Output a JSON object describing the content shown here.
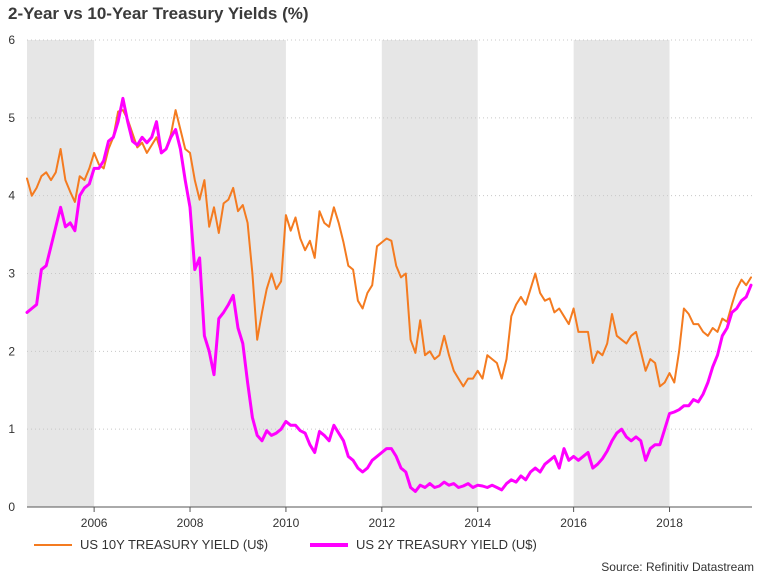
{
  "chart_data": {
    "type": "line",
    "title": "2-Year vs 10-Year Treasury Yields (%)",
    "xlabel": "",
    "ylabel": "",
    "xlim": [
      2004.6,
      2019.72
    ],
    "ylim": [
      0,
      6
    ],
    "y_ticks": [
      "0",
      "1",
      "2",
      "3",
      "4",
      "5",
      "6"
    ],
    "x_ticks": [
      "2006",
      "2008",
      "2010",
      "2012",
      "2014",
      "2016",
      "2018"
    ],
    "recession_shading": [
      [
        2004.6,
        2006.0
      ],
      [
        2008.0,
        2010.0
      ],
      [
        2012.0,
        2014.0
      ],
      [
        2016.0,
        2018.0
      ]
    ],
    "series": [
      {
        "name": "US 10Y TREASURY YIELD (U$)",
        "color": "#F47B20",
        "points": [
          [
            2004.6,
            4.22
          ],
          [
            2004.7,
            4.0
          ],
          [
            2004.8,
            4.1
          ],
          [
            2004.9,
            4.25
          ],
          [
            2005.0,
            4.3
          ],
          [
            2005.1,
            4.2
          ],
          [
            2005.2,
            4.3
          ],
          [
            2005.3,
            4.6
          ],
          [
            2005.4,
            4.2
          ],
          [
            2005.5,
            4.05
          ],
          [
            2005.6,
            3.92
          ],
          [
            2005.7,
            4.25
          ],
          [
            2005.8,
            4.2
          ],
          [
            2005.9,
            4.35
          ],
          [
            2006.0,
            4.55
          ],
          [
            2006.1,
            4.4
          ],
          [
            2006.2,
            4.35
          ],
          [
            2006.3,
            4.6
          ],
          [
            2006.4,
            4.75
          ],
          [
            2006.5,
            5.08
          ],
          [
            2006.6,
            5.1
          ],
          [
            2006.7,
            4.98
          ],
          [
            2006.8,
            4.8
          ],
          [
            2006.9,
            4.62
          ],
          [
            2007.0,
            4.68
          ],
          [
            2007.1,
            4.55
          ],
          [
            2007.2,
            4.65
          ],
          [
            2007.3,
            4.75
          ],
          [
            2007.4,
            4.55
          ],
          [
            2007.5,
            4.6
          ],
          [
            2007.6,
            4.78
          ],
          [
            2007.7,
            5.1
          ],
          [
            2007.8,
            4.85
          ],
          [
            2007.9,
            4.6
          ],
          [
            2008.0,
            4.55
          ],
          [
            2008.1,
            4.2
          ],
          [
            2008.2,
            3.95
          ],
          [
            2008.3,
            4.2
          ],
          [
            2008.4,
            3.6
          ],
          [
            2008.5,
            3.85
          ],
          [
            2008.6,
            3.52
          ],
          [
            2008.7,
            3.9
          ],
          [
            2008.8,
            3.95
          ],
          [
            2008.9,
            4.1
          ],
          [
            2009.0,
            3.8
          ],
          [
            2009.1,
            3.88
          ],
          [
            2009.2,
            3.65
          ],
          [
            2009.3,
            3.0
          ],
          [
            2009.4,
            2.15
          ],
          [
            2009.5,
            2.5
          ],
          [
            2009.6,
            2.8
          ],
          [
            2009.7,
            3.0
          ],
          [
            2009.8,
            2.8
          ],
          [
            2009.9,
            2.9
          ],
          [
            2010.0,
            3.75
          ],
          [
            2010.1,
            3.55
          ],
          [
            2010.2,
            3.72
          ],
          [
            2010.3,
            3.45
          ],
          [
            2010.4,
            3.3
          ],
          [
            2010.5,
            3.42
          ],
          [
            2010.6,
            3.2
          ],
          [
            2010.7,
            3.8
          ],
          [
            2010.8,
            3.65
          ],
          [
            2010.9,
            3.6
          ],
          [
            2011.0,
            3.85
          ],
          [
            2011.1,
            3.65
          ],
          [
            2011.2,
            3.4
          ],
          [
            2011.3,
            3.1
          ],
          [
            2011.4,
            3.05
          ],
          [
            2011.5,
            2.65
          ],
          [
            2011.6,
            2.55
          ],
          [
            2011.7,
            2.75
          ],
          [
            2011.8,
            2.85
          ],
          [
            2011.9,
            3.35
          ],
          [
            2012.0,
            3.4
          ],
          [
            2012.1,
            3.45
          ],
          [
            2012.2,
            3.42
          ],
          [
            2012.3,
            3.1
          ],
          [
            2012.4,
            2.95
          ],
          [
            2012.5,
            3.0
          ],
          [
            2012.6,
            2.15
          ],
          [
            2012.7,
            1.98
          ],
          [
            2012.8,
            2.4
          ],
          [
            2012.9,
            1.95
          ],
          [
            2013.0,
            2.0
          ],
          [
            2013.1,
            1.9
          ],
          [
            2013.2,
            1.95
          ],
          [
            2013.3,
            2.2
          ],
          [
            2013.4,
            1.95
          ],
          [
            2013.5,
            1.75
          ],
          [
            2013.6,
            1.65
          ],
          [
            2013.7,
            1.55
          ],
          [
            2013.8,
            1.65
          ],
          [
            2013.9,
            1.65
          ],
          [
            2014.0,
            1.75
          ],
          [
            2014.1,
            1.65
          ],
          [
            2014.2,
            1.95
          ],
          [
            2014.3,
            1.9
          ],
          [
            2014.4,
            1.85
          ],
          [
            2014.5,
            1.65
          ],
          [
            2014.6,
            1.9
          ],
          [
            2014.7,
            2.45
          ],
          [
            2014.8,
            2.6
          ],
          [
            2014.9,
            2.7
          ],
          [
            2015.0,
            2.6
          ],
          [
            2015.1,
            2.8
          ],
          [
            2015.2,
            3.0
          ],
          [
            2015.3,
            2.75
          ],
          [
            2015.4,
            2.65
          ],
          [
            2015.5,
            2.68
          ],
          [
            2015.6,
            2.5
          ],
          [
            2015.7,
            2.55
          ],
          [
            2015.8,
            2.45
          ],
          [
            2015.9,
            2.35
          ],
          [
            2016.0,
            2.55
          ],
          [
            2016.1,
            2.25
          ],
          [
            2016.2,
            2.25
          ],
          [
            2016.3,
            2.25
          ],
          [
            2016.4,
            1.85
          ],
          [
            2016.5,
            2.0
          ],
          [
            2016.6,
            1.95
          ],
          [
            2016.7,
            2.1
          ],
          [
            2016.8,
            2.48
          ],
          [
            2016.9,
            2.2
          ],
          [
            2017.0,
            2.15
          ],
          [
            2017.1,
            2.1
          ],
          [
            2017.2,
            2.2
          ],
          [
            2017.3,
            2.25
          ],
          [
            2017.4,
            2.0
          ],
          [
            2017.5,
            1.75
          ],
          [
            2017.6,
            1.9
          ],
          [
            2017.7,
            1.85
          ],
          [
            2017.8,
            1.55
          ],
          [
            2017.9,
            1.6
          ],
          [
            2018.0,
            1.72
          ],
          [
            2018.1,
            1.6
          ],
          [
            2018.2,
            2.0
          ],
          [
            2018.3,
            2.55
          ],
          [
            2018.4,
            2.48
          ],
          [
            2018.5,
            2.35
          ],
          [
            2018.6,
            2.35
          ],
          [
            2018.7,
            2.25
          ],
          [
            2018.8,
            2.2
          ],
          [
            2018.9,
            2.3
          ],
          [
            2019.0,
            2.25
          ],
          [
            2019.1,
            2.42
          ],
          [
            2019.2,
            2.38
          ],
          [
            2019.3,
            2.6
          ],
          [
            2019.4,
            2.8
          ],
          [
            2019.5,
            2.92
          ],
          [
            2019.6,
            2.85
          ],
          [
            2019.7,
            2.95
          ]
        ]
      },
      {
        "name": "US 2Y TREASURY YIELD (U$)",
        "color": "#FF00FF",
        "points": [
          [
            2004.6,
            2.5
          ],
          [
            2004.7,
            2.55
          ],
          [
            2004.8,
            2.6
          ],
          [
            2004.9,
            3.05
          ],
          [
            2005.0,
            3.1
          ],
          [
            2005.1,
            3.35
          ],
          [
            2005.2,
            3.6
          ],
          [
            2005.3,
            3.85
          ],
          [
            2005.4,
            3.6
          ],
          [
            2005.5,
            3.65
          ],
          [
            2005.6,
            3.55
          ],
          [
            2005.7,
            4.0
          ],
          [
            2005.8,
            4.1
          ],
          [
            2005.9,
            4.15
          ],
          [
            2006.0,
            4.35
          ],
          [
            2006.1,
            4.35
          ],
          [
            2006.2,
            4.45
          ],
          [
            2006.3,
            4.7
          ],
          [
            2006.4,
            4.75
          ],
          [
            2006.5,
            4.95
          ],
          [
            2006.6,
            5.25
          ],
          [
            2006.7,
            4.95
          ],
          [
            2006.8,
            4.7
          ],
          [
            2006.9,
            4.65
          ],
          [
            2007.0,
            4.75
          ],
          [
            2007.1,
            4.68
          ],
          [
            2007.2,
            4.75
          ],
          [
            2007.3,
            4.95
          ],
          [
            2007.4,
            4.55
          ],
          [
            2007.5,
            4.6
          ],
          [
            2007.6,
            4.75
          ],
          [
            2007.7,
            4.85
          ],
          [
            2007.8,
            4.6
          ],
          [
            2007.9,
            4.2
          ],
          [
            2008.0,
            3.85
          ],
          [
            2008.1,
            3.05
          ],
          [
            2008.2,
            3.2
          ],
          [
            2008.3,
            2.2
          ],
          [
            2008.4,
            2.0
          ],
          [
            2008.5,
            1.7
          ],
          [
            2008.6,
            2.42
          ],
          [
            2008.7,
            2.5
          ],
          [
            2008.8,
            2.6
          ],
          [
            2008.9,
            2.72
          ],
          [
            2009.0,
            2.3
          ],
          [
            2009.1,
            2.1
          ],
          [
            2009.2,
            1.6
          ],
          [
            2009.3,
            1.15
          ],
          [
            2009.4,
            0.92
          ],
          [
            2009.5,
            0.85
          ],
          [
            2009.6,
            0.98
          ],
          [
            2009.7,
            0.92
          ],
          [
            2009.8,
            0.95
          ],
          [
            2009.9,
            1.0
          ],
          [
            2010.0,
            1.1
          ],
          [
            2010.1,
            1.05
          ],
          [
            2010.2,
            1.05
          ],
          [
            2010.3,
            0.98
          ],
          [
            2010.4,
            0.95
          ],
          [
            2010.5,
            0.8
          ],
          [
            2010.6,
            0.7
          ],
          [
            2010.7,
            0.97
          ],
          [
            2010.8,
            0.92
          ],
          [
            2010.9,
            0.85
          ],
          [
            2011.0,
            1.05
          ],
          [
            2011.1,
            0.95
          ],
          [
            2011.2,
            0.85
          ],
          [
            2011.3,
            0.65
          ],
          [
            2011.4,
            0.6
          ],
          [
            2011.5,
            0.5
          ],
          [
            2011.6,
            0.45
          ],
          [
            2011.7,
            0.5
          ],
          [
            2011.8,
            0.6
          ],
          [
            2011.9,
            0.65
          ],
          [
            2012.0,
            0.7
          ],
          [
            2012.1,
            0.75
          ],
          [
            2012.2,
            0.75
          ],
          [
            2012.3,
            0.65
          ],
          [
            2012.4,
            0.5
          ],
          [
            2012.5,
            0.45
          ],
          [
            2012.6,
            0.25
          ],
          [
            2012.7,
            0.2
          ],
          [
            2012.8,
            0.28
          ],
          [
            2012.9,
            0.25
          ],
          [
            2013.0,
            0.3
          ],
          [
            2013.1,
            0.25
          ],
          [
            2013.2,
            0.27
          ],
          [
            2013.3,
            0.32
          ],
          [
            2013.4,
            0.28
          ],
          [
            2013.5,
            0.3
          ],
          [
            2013.6,
            0.25
          ],
          [
            2013.7,
            0.27
          ],
          [
            2013.8,
            0.3
          ],
          [
            2013.9,
            0.25
          ],
          [
            2014.0,
            0.28
          ],
          [
            2014.1,
            0.27
          ],
          [
            2014.2,
            0.25
          ],
          [
            2014.3,
            0.28
          ],
          [
            2014.4,
            0.25
          ],
          [
            2014.5,
            0.22
          ],
          [
            2014.6,
            0.3
          ],
          [
            2014.7,
            0.35
          ],
          [
            2014.8,
            0.32
          ],
          [
            2014.9,
            0.4
          ],
          [
            2015.0,
            0.35
          ],
          [
            2015.1,
            0.45
          ],
          [
            2015.2,
            0.5
          ],
          [
            2015.3,
            0.45
          ],
          [
            2015.4,
            0.55
          ],
          [
            2015.5,
            0.6
          ],
          [
            2015.6,
            0.65
          ],
          [
            2015.7,
            0.5
          ],
          [
            2015.8,
            0.75
          ],
          [
            2015.9,
            0.6
          ],
          [
            2016.0,
            0.65
          ],
          [
            2016.1,
            0.6
          ],
          [
            2016.2,
            0.65
          ],
          [
            2016.3,
            0.7
          ],
          [
            2016.4,
            0.5
          ],
          [
            2016.5,
            0.55
          ],
          [
            2016.6,
            0.62
          ],
          [
            2016.7,
            0.72
          ],
          [
            2016.8,
            0.85
          ],
          [
            2016.9,
            0.95
          ],
          [
            2017.0,
            1.0
          ],
          [
            2017.1,
            0.9
          ],
          [
            2017.2,
            0.85
          ],
          [
            2017.3,
            0.9
          ],
          [
            2017.4,
            0.85
          ],
          [
            2017.5,
            0.6
          ],
          [
            2017.6,
            0.75
          ],
          [
            2017.7,
            0.8
          ],
          [
            2017.8,
            0.8
          ],
          [
            2017.9,
            1.0
          ],
          [
            2018.0,
            1.2
          ],
          [
            2018.1,
            1.22
          ],
          [
            2018.2,
            1.25
          ],
          [
            2018.3,
            1.3
          ],
          [
            2018.4,
            1.3
          ],
          [
            2018.5,
            1.38
          ],
          [
            2018.6,
            1.35
          ],
          [
            2018.7,
            1.45
          ],
          [
            2018.8,
            1.6
          ],
          [
            2018.9,
            1.8
          ],
          [
            2019.0,
            1.95
          ],
          [
            2019.1,
            2.2
          ],
          [
            2019.2,
            2.3
          ],
          [
            2019.3,
            2.5
          ],
          [
            2019.4,
            2.55
          ],
          [
            2019.5,
            2.65
          ],
          [
            2019.6,
            2.7
          ],
          [
            2019.7,
            2.85
          ]
        ]
      }
    ]
  },
  "legend": {
    "item_10y": "US 10Y TREASURY YIELD (U$)",
    "item_2y": "US 2Y TREASURY YIELD (U$)"
  },
  "source": "Source: Refinitiv Datastream",
  "colors": {
    "ten_year": "#F47B20",
    "two_year": "#FF00FF",
    "shading": "#E6E6E6"
  }
}
